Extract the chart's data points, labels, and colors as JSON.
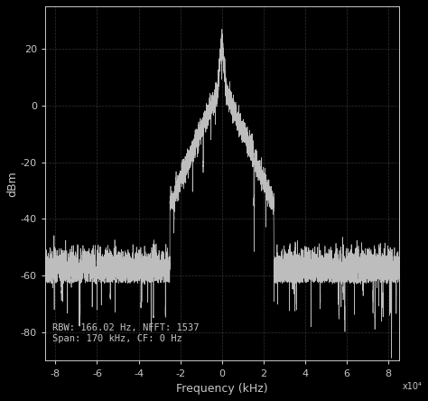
{
  "title": "",
  "xlabel": "Frequency (kHz)",
  "ylabel": "dBm",
  "xlim": [
    -85000,
    85000
  ],
  "ylim": [
    -90,
    35
  ],
  "xticks": [
    -80000,
    -60000,
    -40000,
    -20000,
    0,
    20000,
    40000,
    60000,
    80000
  ],
  "xtick_labels": [
    "-8",
    "-6",
    "-4",
    "-2",
    "0",
    "2",
    "4",
    "6",
    "8"
  ],
  "yticks": [
    -80,
    -60,
    -40,
    -20,
    0,
    20
  ],
  "x_scale_label": "x10⁴",
  "annotation": "RBW: 166.02 Hz, NFFT: 1537\nSpan: 170 kHz, CF: 0 Hz",
  "background_color": "#000000",
  "axes_color": "#000000",
  "grid_color": "#555555",
  "line_color": "#c8c8c8",
  "text_color": "#c8c8c8",
  "peak_power": 25,
  "noise_floor": -57,
  "signal_bw": 25000,
  "seed": 42
}
